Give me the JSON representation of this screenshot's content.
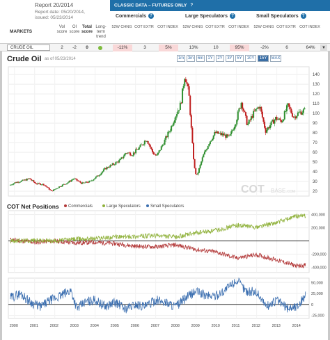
{
  "report": {
    "title": "Report 20/2014",
    "date": "Report date: 05/20/2014,",
    "issued": "issued: 05/23/2014"
  },
  "markets_header": {
    "markets": "MARKETS",
    "vol": "Vol score",
    "oi": "OI score",
    "total": "Total score",
    "trend": "Long-term trend"
  },
  "topbar": {
    "label": "CLASSIC DATA – FUTURES ONLY"
  },
  "groups": {
    "commercials": "Commercials",
    "large": "Large Speculators",
    "small": "Small Speculators"
  },
  "subheaders": [
    "52W CHNG",
    "COT EXTR",
    "COT INDEX",
    "52W CHNG",
    "COT EXTR",
    "COT INDEX",
    "52W CHNG",
    "COT EXTR",
    "COT INDEX"
  ],
  "row": {
    "market": "CRUDE OIL",
    "vol": "2",
    "oi": "-2",
    "total": "0",
    "values": [
      "-11%",
      "3",
      "5%",
      "13%",
      "10",
      "95%",
      "-2%",
      "6",
      "64%"
    ]
  },
  "chart": {
    "title": "Crude Oil",
    "asof": "as of 05/23/2014",
    "ranges": [
      "1m",
      "3m",
      "6m",
      "1Y",
      "2Y",
      "3Y",
      "5Y",
      "10Y",
      "15Y",
      "MAX"
    ],
    "active_range": "15Y",
    "watermark": "COT",
    "watermark2": "BASE",
    "watermark3": ".COM"
  },
  "cot": {
    "title": "COT Net Positions",
    "legend": [
      "Commercials",
      "Large Speculators",
      "Small Speculators"
    ]
  },
  "colors": {
    "commercials": "#b33a3a",
    "large": "#8fb13a",
    "small": "#3c6fb0",
    "up": "#2f8f2f",
    "down": "#c02020"
  },
  "chart_data": [
    {
      "type": "line",
      "title": "Crude Oil",
      "x": [
        2000,
        2001,
        2002,
        2003,
        2004,
        2005,
        2006,
        2007,
        2008,
        2009,
        2010,
        2011,
        2012,
        2013,
        2014
      ],
      "xlim": [
        1999.7,
        2014.6
      ],
      "ylim": [
        15,
        148
      ],
      "yticks": [
        20,
        30,
        40,
        50,
        60,
        70,
        80,
        90,
        100,
        110,
        120,
        130,
        140
      ],
      "series": [
        {
          "points": [
            [
              1999.8,
              26
            ],
            [
              2000.1,
              29
            ],
            [
              2000.5,
              31
            ],
            [
              2000.8,
              33
            ],
            [
              2001.1,
              28
            ],
            [
              2001.5,
              27
            ],
            [
              2001.9,
              20
            ],
            [
              2002.3,
              25
            ],
            [
              2002.7,
              29
            ],
            [
              2003.0,
              33
            ],
            [
              2003.4,
              28
            ],
            [
              2003.8,
              30
            ],
            [
              2004.2,
              36
            ],
            [
              2004.6,
              44
            ],
            [
              2004.9,
              47
            ],
            [
              2005.3,
              52
            ],
            [
              2005.6,
              60
            ],
            [
              2005.9,
              58
            ],
            [
              2006.3,
              66
            ],
            [
              2006.6,
              74
            ],
            [
              2006.9,
              60
            ],
            [
              2007.1,
              56
            ],
            [
              2007.5,
              72
            ],
            [
              2007.8,
              85
            ],
            [
              2008.0,
              96
            ],
            [
              2008.3,
              110
            ],
            [
              2008.5,
              140
            ],
            [
              2008.7,
              120
            ],
            [
              2008.9,
              60
            ],
            [
              2009.0,
              40
            ],
            [
              2009.1,
              36
            ],
            [
              2009.4,
              56
            ],
            [
              2009.7,
              70
            ],
            [
              2010.0,
              80
            ],
            [
              2010.4,
              78
            ],
            [
              2010.7,
              75
            ],
            [
              2011.0,
              90
            ],
            [
              2011.3,
              112
            ],
            [
              2011.6,
              88
            ],
            [
              2011.9,
              100
            ],
            [
              2012.2,
              108
            ],
            [
              2012.5,
              82
            ],
            [
              2012.8,
              90
            ],
            [
              2013.0,
              95
            ],
            [
              2013.3,
              92
            ],
            [
              2013.6,
              108
            ],
            [
              2013.9,
              96
            ],
            [
              2014.1,
              100
            ],
            [
              2014.4,
              103
            ]
          ]
        }
      ]
    },
    {
      "type": "line",
      "title": "COT Net Positions",
      "x": [
        2000,
        2001,
        2002,
        2003,
        2004,
        2005,
        2006,
        2007,
        2008,
        2009,
        2010,
        2011,
        2012,
        2013,
        2014
      ],
      "xlim": [
        1999.7,
        2014.6
      ],
      "ylim": [
        -480000,
        460000
      ],
      "yticks": [
        -400000,
        -200000,
        0,
        200000,
        400000
      ],
      "series": [
        {
          "name": "Commercials",
          "points": [
            [
              1999.8,
              20000
            ],
            [
              2001,
              -20000
            ],
            [
              2002,
              0
            ],
            [
              2003,
              -30000
            ],
            [
              2004,
              -20000
            ],
            [
              2005,
              -40000
            ],
            [
              2006,
              -80000
            ],
            [
              2007,
              -90000
            ],
            [
              2008,
              -60000
            ],
            [
              2009,
              -130000
            ],
            [
              2010,
              -170000
            ],
            [
              2011,
              -260000
            ],
            [
              2012,
              -210000
            ],
            [
              2013,
              -290000
            ],
            [
              2014,
              -380000
            ],
            [
              2014.4,
              -370000
            ]
          ]
        },
        {
          "name": "Large Speculators",
          "points": [
            [
              1999.8,
              0
            ],
            [
              2001,
              10000
            ],
            [
              2002,
              0
            ],
            [
              2003,
              30000
            ],
            [
              2004,
              40000
            ],
            [
              2005,
              60000
            ],
            [
              2006,
              70000
            ],
            [
              2007,
              80000
            ],
            [
              2008,
              60000
            ],
            [
              2009,
              120000
            ],
            [
              2010,
              160000
            ],
            [
              2011,
              240000
            ],
            [
              2012,
              210000
            ],
            [
              2013,
              280000
            ],
            [
              2014,
              380000
            ],
            [
              2014.4,
              380000
            ]
          ]
        }
      ]
    },
    {
      "type": "line",
      "title": "Small Speculators",
      "x": [
        2000,
        2001,
        2002,
        2003,
        2004,
        2005,
        2006,
        2007,
        2008,
        2009,
        2010,
        2011,
        2012,
        2013,
        2014
      ],
      "xlim": [
        1999.7,
        2014.6
      ],
      "ylim": [
        -32000,
        60000
      ],
      "yticks": [
        -25000,
        0,
        25000,
        50000
      ],
      "series": [
        {
          "name": "Small Speculators",
          "points": [
            [
              1999.8,
              15000
            ],
            [
              2000.3,
              25000
            ],
            [
              2000.8,
              5000
            ],
            [
              2001.3,
              -5000
            ],
            [
              2001.8,
              10000
            ],
            [
              2002.3,
              20000
            ],
            [
              2002.8,
              32000
            ],
            [
              2003.1,
              -10000
            ],
            [
              2003.5,
              5000
            ],
            [
              2004.0,
              10000
            ],
            [
              2004.5,
              -5000
            ],
            [
              2005.0,
              5000
            ],
            [
              2005.5,
              -10000
            ],
            [
              2006.0,
              0
            ],
            [
              2006.5,
              -5000
            ],
            [
              2007.0,
              10000
            ],
            [
              2007.5,
              5000
            ],
            [
              2008.0,
              -5000
            ],
            [
              2008.5,
              15000
            ],
            [
              2009.0,
              30000
            ],
            [
              2009.5,
              20000
            ],
            [
              2010.0,
              20000
            ],
            [
              2010.5,
              35000
            ],
            [
              2011.0,
              55000
            ],
            [
              2011.5,
              30000
            ],
            [
              2012.0,
              28000
            ],
            [
              2012.5,
              -5000
            ],
            [
              2013.0,
              10000
            ],
            [
              2013.5,
              -8000
            ],
            [
              2014.0,
              -5000
            ],
            [
              2014.4,
              20000
            ]
          ]
        }
      ]
    }
  ]
}
